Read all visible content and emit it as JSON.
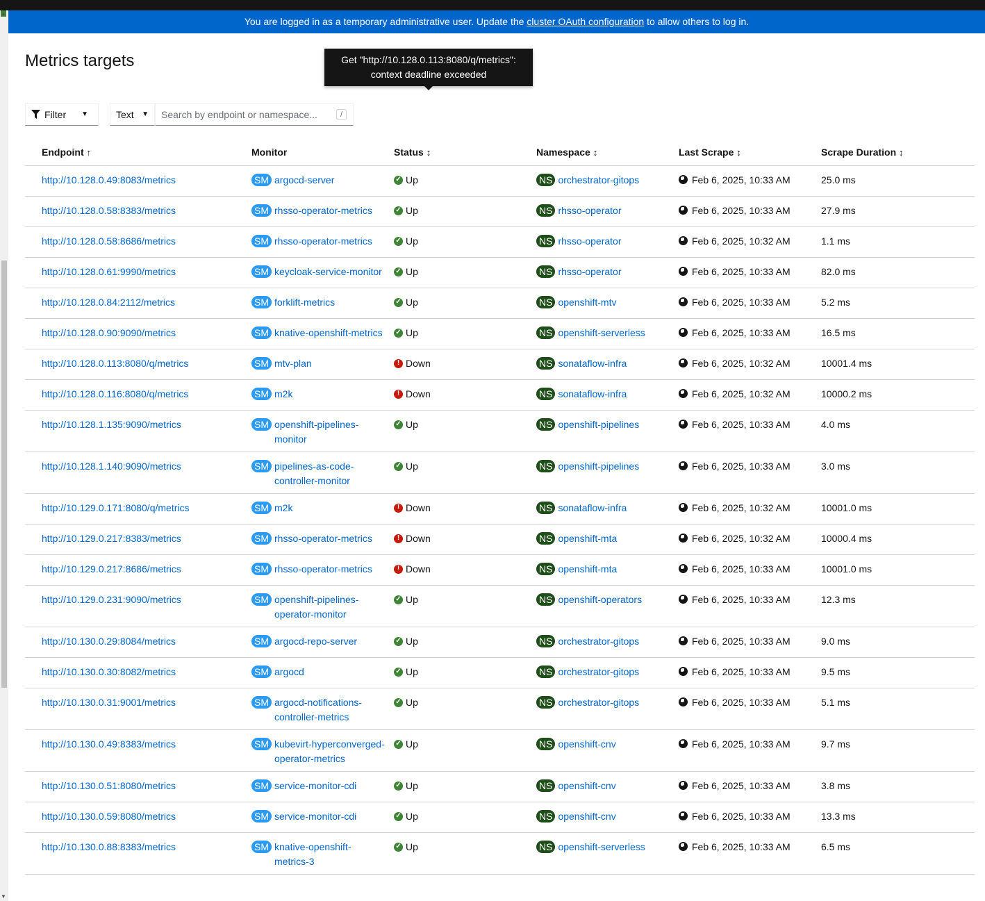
{
  "banner": {
    "prefix": "You are logged in as a temporary administrative user. Update the ",
    "link": "cluster OAuth configuration",
    "suffix": " to allow others to log in."
  },
  "page_title": "Metrics targets",
  "toolbar": {
    "filter_label": "Filter",
    "text_select": "Text",
    "search_placeholder": "Search by endpoint or namespace...",
    "shortcut": "/"
  },
  "columns": [
    "Endpoint",
    "Monitor",
    "Status",
    "Namespace",
    "Last Scrape",
    "Scrape Duration"
  ],
  "badges": {
    "monitor": "SM",
    "namespace": "NS"
  },
  "colors": {
    "accent": "#0066cc",
    "up": "#3e8635",
    "down": "#c9190b",
    "sm_badge": "#2b9af3",
    "ns_badge": "#1e4f18"
  },
  "tooltip": "Get \"http://10.128.0.113:8080/q/metrics\": context deadline exceeded",
  "rows": [
    {
      "endpoint": "http://10.128.0.49:8083/metrics",
      "monitor": "argocd-server",
      "status": "Up",
      "namespace": "orchestrator-gitops",
      "last_scrape": "Feb 6, 2025, 10:33 AM",
      "duration": "25.0 ms"
    },
    {
      "endpoint": "http://10.128.0.58:8383/metrics",
      "monitor": "rhsso-operator-metrics",
      "status": "Up",
      "namespace": "rhsso-operator",
      "last_scrape": "Feb 6, 2025, 10:33 AM",
      "duration": "27.9 ms"
    },
    {
      "endpoint": "http://10.128.0.58:8686/metrics",
      "monitor": "rhsso-operator-metrics",
      "status": "Up",
      "namespace": "rhsso-operator",
      "last_scrape": "Feb 6, 2025, 10:32 AM",
      "duration": "1.1 ms"
    },
    {
      "endpoint": "http://10.128.0.61:9990/metrics",
      "monitor": "keycloak-service-monitor",
      "status": "Up",
      "namespace": "rhsso-operator",
      "last_scrape": "Feb 6, 2025, 10:33 AM",
      "duration": "82.0 ms"
    },
    {
      "endpoint": "http://10.128.0.84:2112/metrics",
      "monitor": "forklift-metrics",
      "status": "Up",
      "namespace": "openshift-mtv",
      "last_scrape": "Feb 6, 2025, 10:33 AM",
      "duration": "5.2 ms"
    },
    {
      "endpoint": "http://10.128.0.90:9090/metrics",
      "monitor": "knative-openshift-metrics",
      "status": "Up",
      "namespace": "openshift-serverless",
      "last_scrape": "Feb 6, 2025, 10:33 AM",
      "duration": "16.5 ms"
    },
    {
      "endpoint": "http://10.128.0.113:8080/q/metrics",
      "monitor": "mtv-plan",
      "status": "Down",
      "namespace": "sonataflow-infra",
      "last_scrape": "Feb 6, 2025, 10:32 AM",
      "duration": "10001.4 ms"
    },
    {
      "endpoint": "http://10.128.0.116:8080/q/metrics",
      "monitor": "m2k",
      "status": "Down",
      "namespace": "sonataflow-infra",
      "last_scrape": "Feb 6, 2025, 10:32 AM",
      "duration": "10000.2 ms"
    },
    {
      "endpoint": "http://10.128.1.135:9090/metrics",
      "monitor": "openshift-pipelines-monitor",
      "status": "Up",
      "namespace": "openshift-pipelines",
      "last_scrape": "Feb 6, 2025, 10:33 AM",
      "duration": "4.0 ms"
    },
    {
      "endpoint": "http://10.128.1.140:9090/metrics",
      "monitor": "pipelines-as-code-controller-monitor",
      "status": "Up",
      "namespace": "openshift-pipelines",
      "last_scrape": "Feb 6, 2025, 10:33 AM",
      "duration": "3.0 ms"
    },
    {
      "endpoint": "http://10.129.0.171:8080/q/metrics",
      "monitor": "m2k",
      "status": "Down",
      "namespace": "sonataflow-infra",
      "last_scrape": "Feb 6, 2025, 10:32 AM",
      "duration": "10001.0 ms"
    },
    {
      "endpoint": "http://10.129.0.217:8383/metrics",
      "monitor": "rhsso-operator-metrics",
      "status": "Down",
      "namespace": "openshift-mta",
      "last_scrape": "Feb 6, 2025, 10:32 AM",
      "duration": "10000.4 ms"
    },
    {
      "endpoint": "http://10.129.0.217:8686/metrics",
      "monitor": "rhsso-operator-metrics",
      "status": "Down",
      "namespace": "openshift-mta",
      "last_scrape": "Feb 6, 2025, 10:33 AM",
      "duration": "10001.0 ms"
    },
    {
      "endpoint": "http://10.129.0.231:9090/metrics",
      "monitor": "openshift-pipelines-operator-monitor",
      "status": "Up",
      "namespace": "openshift-operators",
      "last_scrape": "Feb 6, 2025, 10:33 AM",
      "duration": "12.3 ms"
    },
    {
      "endpoint": "http://10.130.0.29:8084/metrics",
      "monitor": "argocd-repo-server",
      "status": "Up",
      "namespace": "orchestrator-gitops",
      "last_scrape": "Feb 6, 2025, 10:33 AM",
      "duration": "9.0 ms"
    },
    {
      "endpoint": "http://10.130.0.30:8082/metrics",
      "monitor": "argocd",
      "status": "Up",
      "namespace": "orchestrator-gitops",
      "last_scrape": "Feb 6, 2025, 10:33 AM",
      "duration": "9.5 ms"
    },
    {
      "endpoint": "http://10.130.0.31:9001/metrics",
      "monitor": "argocd-notifications-controller-metrics",
      "status": "Up",
      "namespace": "orchestrator-gitops",
      "last_scrape": "Feb 6, 2025, 10:33 AM",
      "duration": "5.1 ms"
    },
    {
      "endpoint": "http://10.130.0.49:8383/metrics",
      "monitor": "kubevirt-hyperconverged-operator-metrics",
      "status": "Up",
      "namespace": "openshift-cnv",
      "last_scrape": "Feb 6, 2025, 10:33 AM",
      "duration": "9.7 ms"
    },
    {
      "endpoint": "http://10.130.0.51:8080/metrics",
      "monitor": "service-monitor-cdi",
      "status": "Up",
      "namespace": "openshift-cnv",
      "last_scrape": "Feb 6, 2025, 10:33 AM",
      "duration": "3.8 ms"
    },
    {
      "endpoint": "http://10.130.0.59:8080/metrics",
      "monitor": "service-monitor-cdi",
      "status": "Up",
      "namespace": "openshift-cnv",
      "last_scrape": "Feb 6, 2025, 10:33 AM",
      "duration": "13.3 ms"
    },
    {
      "endpoint": "http://10.130.0.88:8383/metrics",
      "monitor": "knative-openshift-metrics-3",
      "status": "Up",
      "namespace": "openshift-serverless",
      "last_scrape": "Feb 6, 2025, 10:33 AM",
      "duration": "6.5 ms"
    }
  ]
}
